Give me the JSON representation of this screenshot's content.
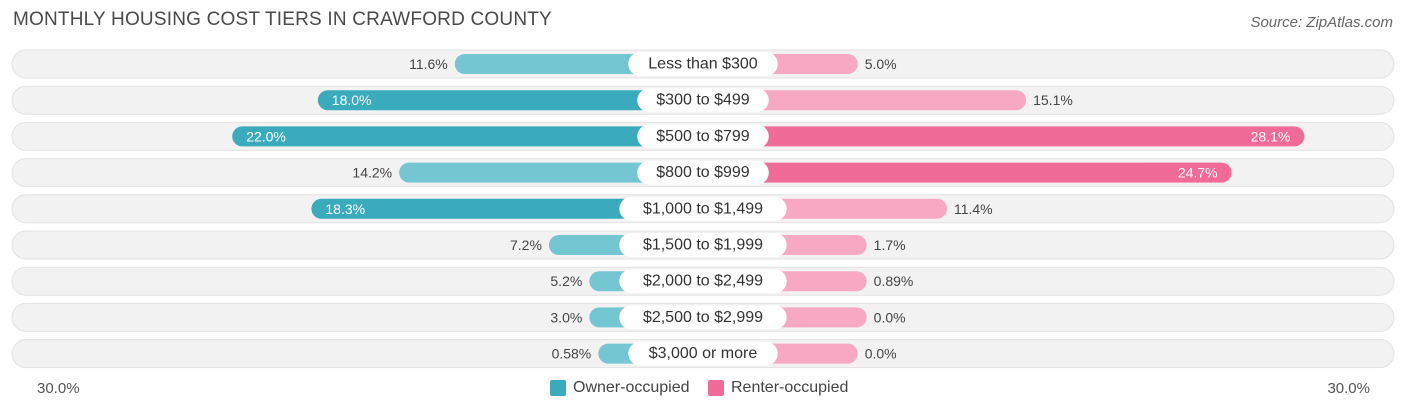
{
  "title": "MONTHLY HOUSING COST TIERS IN CRAWFORD COUNTY",
  "source": "Source: ZipAtlas.com",
  "chart_data": {
    "type": "bar",
    "orientation": "horizontal-diverging",
    "categories": [
      "Less than $300",
      "$300 to $499",
      "$500 to $799",
      "$800 to $999",
      "$1,000 to $1,499",
      "$1,500 to $1,999",
      "$2,000 to $2,499",
      "$2,500 to $2,999",
      "$3,000 or more"
    ],
    "series": [
      {
        "name": "Owner-occupied",
        "color": "#3aabbd",
        "color_light": "#74c6d2",
        "values": [
          11.6,
          18.0,
          22.0,
          14.2,
          18.3,
          7.2,
          5.2,
          3.0,
          0.58
        ],
        "labels": [
          "11.6%",
          "18.0%",
          "22.0%",
          "14.2%",
          "18.3%",
          "7.2%",
          "5.2%",
          "3.0%",
          "0.58%"
        ]
      },
      {
        "name": "Renter-occupied",
        "color": "#f06b98",
        "color_light": "#f7a8c3",
        "values": [
          5.0,
          15.1,
          28.1,
          24.7,
          11.4,
          1.7,
          0.89,
          0.0,
          0.0
        ],
        "labels": [
          "5.0%",
          "15.1%",
          "28.1%",
          "24.7%",
          "11.4%",
          "1.7%",
          "0.89%",
          "0.0%",
          "0.0%"
        ]
      }
    ],
    "xlim": [
      -30,
      30
    ],
    "axis_left_label": "30.0%",
    "axis_right_label": "30.0%",
    "legend_position": "bottom-center"
  }
}
